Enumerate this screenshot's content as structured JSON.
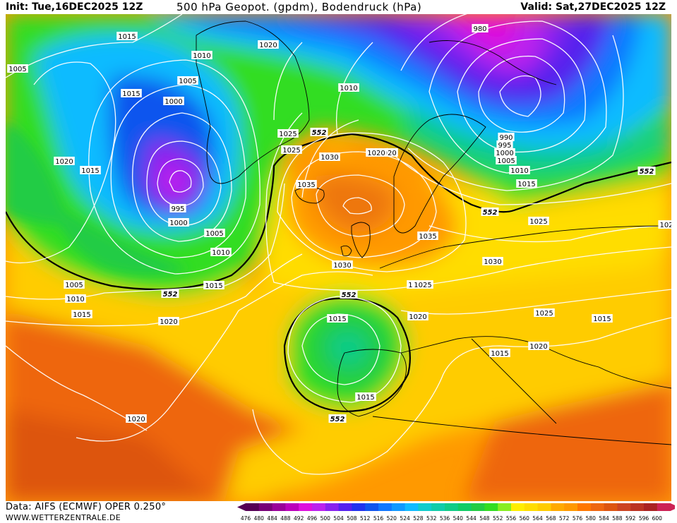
{
  "header": {
    "init": "Init: Tue,16DEC2025 12Z",
    "title": "500 hPa Geopot. (gpdm), Bodendruck (hPa)",
    "valid": "Valid: Sat,27DEC2025 12Z"
  },
  "footer": {
    "data_source": "Data: AIFS (ECMWF) OPER 0.250°",
    "website": "WWW.WETTERZENTRALE.DE"
  },
  "colorbar": {
    "levels": [
      476,
      480,
      484,
      488,
      492,
      496,
      500,
      504,
      508,
      512,
      516,
      520,
      524,
      528,
      532,
      536,
      540,
      544,
      548,
      552,
      556,
      560,
      564,
      568,
      572,
      576,
      580,
      584,
      588,
      592,
      596,
      600
    ],
    "colors": [
      "#550055",
      "#770077",
      "#990099",
      "#bb00bb",
      "#dd11dd",
      "#bb22ee",
      "#8822ee",
      "#5522ee",
      "#2233ee",
      "#1155ee",
      "#1177ff",
      "#1199ff",
      "#11bbff",
      "#11cccc",
      "#11ccaa",
      "#11cc88",
      "#11cc66",
      "#22cc44",
      "#33dd22",
      "#88ee22",
      "#ffee00",
      "#ffdd00",
      "#ffcc00",
      "#ffaa00",
      "#ff9900",
      "#ff7700",
      "#ee6611",
      "#dd5511",
      "#cc4422",
      "#bb3322",
      "#aa2222",
      "#cc2255"
    ]
  },
  "map": {
    "pressure_labels": [
      "1015",
      "1015",
      "1005",
      "1010",
      "1005",
      "1020",
      "1010",
      "1000",
      "1025",
      "1015",
      "1020",
      "995",
      "1005",
      "1000",
      "1010",
      "1015",
      "1010",
      "1005",
      "1020",
      "1015",
      "1015",
      "1020",
      "1025",
      "1025",
      "1030",
      "1035",
      "1035",
      "1020",
      "990",
      "995",
      "1000",
      "1005",
      "1010",
      "1015",
      "1025",
      "1030",
      "1030",
      "1025",
      "1020",
      "1025",
      "1015",
      "1020",
      "1015",
      "980",
      "1020",
      "102",
      "1015"
    ],
    "geopotential_labels": [
      "552",
      "552",
      "552",
      "552",
      "552",
      "552"
    ]
  }
}
